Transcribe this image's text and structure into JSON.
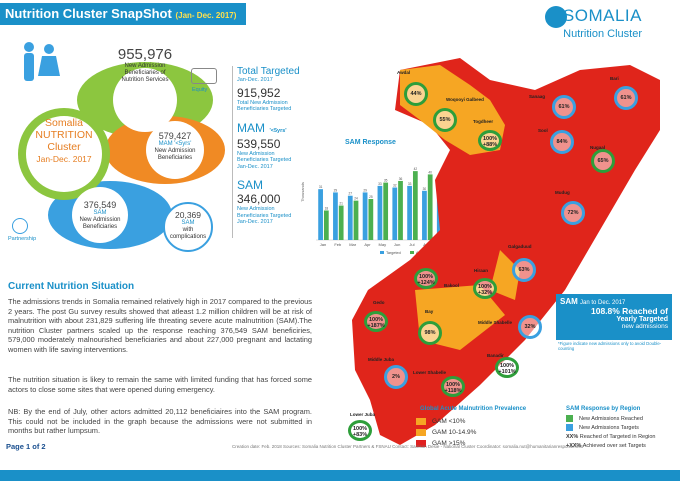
{
  "header": {
    "title": "Nutrition Cluster SnapShot",
    "period": "(Jan- Dec. 2017)",
    "logo_title": "SOMALIA",
    "logo_subtitle": "Nutrition Cluster"
  },
  "diagram": {
    "center": {
      "line1": "Somalia",
      "line2": "NUTRITION",
      "line3": "Cluster",
      "line4": "Jan-Dec. 2017"
    },
    "total": {
      "value": "955,976",
      "label": "New Admission Beneficiaries of Nutrition Services"
    },
    "mam": {
      "value": "579,427",
      "label1": "MAM '<5yrs'",
      "label2": "New Admission Beneficiaries"
    },
    "sam": {
      "value": "376,549",
      "label1": "SAM",
      "label2": "New Admission Beneficiaries"
    },
    "sam_comp": {
      "value": "20,369",
      "label1": "SAM",
      "label2": "with complications"
    },
    "icons": {
      "equity": "Equity",
      "partnership": "Partnership"
    }
  },
  "targets": {
    "total_title": "Total Targeted",
    "total_period": "Jan-Dec. 2017",
    "total_value": "915,952",
    "total_label": "Total New Admission Beneficiaries Targeted",
    "mam_title": "MAM",
    "mam_tag": "'<5yrs'",
    "mam_value": "539,550",
    "mam_label": "New Admission Beneficiaries Targeted Jan-Dec. 2017",
    "sam_title": "SAM",
    "sam_value": "346,000",
    "sam_label": "New Admission Beneficiaries Targeted Jan-Dec. 2017"
  },
  "chart_data": {
    "type": "bar",
    "title": "SAM Response",
    "ylabel": "Thousands",
    "categories": [
      "Jan",
      "Feb",
      "Mar",
      "Apr",
      "May",
      "Jun",
      "Jul",
      "Aug",
      "Sep",
      "Oct",
      "Nov",
      "Dec"
    ],
    "series": [
      {
        "name": "Targeted",
        "values": [
          31,
          29,
          27,
          29,
          33,
          32,
          33,
          30,
          31,
          31,
          31,
          32
        ]
      },
      {
        "name": "Achieved",
        "values": [
          18,
          21,
          24,
          25,
          35,
          36,
          42,
          40,
          38,
          33,
          34,
          37
        ]
      }
    ],
    "legend": [
      "Targeted",
      "Achieved"
    ],
    "colors": {
      "Targeted": "#3aa0e0",
      "Achieved": "#4cb050"
    }
  },
  "situation": {
    "title": "Current Nutrition Situation",
    "p1": "The admissions trends in Somalia remained relatively high in 2017 compared to the previous 2 years. The post Gu survey results showed that atleast 1.2 million children will be at risk of malnutrition with about 231,829 suffering life threating severe acute malnutrition (SAM).The nutrition Cluster partners scaled up the response reaching 376,549 SAM beneficiries, 579,000 moderately malnourished beneficiaries and about 227,000 pregnant and lactating women with life saving interventions.",
    "p2": "The nutrition situation is likey to remain the same with limited funding that has forced some actors to close some sites that were opened during emergency.",
    "p3": "NB: By the end of July, other actors admitted 20,112 beneficiaires into the SAM program. This could not be included in the graph because the admissions were not submitted in months but rather lumpsum."
  },
  "map": {
    "regions": [
      {
        "name": "Awdal",
        "pct": "44%",
        "ring": "green"
      },
      {
        "name": "Woqooyi Galbeed",
        "pct": "55%",
        "ring": "green"
      },
      {
        "name": "Togdheer",
        "pct": "100%\n+88%",
        "ring": "green"
      },
      {
        "name": "Sanaag",
        "pct": "61%",
        "ring": "blue"
      },
      {
        "name": "Bari",
        "pct": "61%",
        "ring": "blue"
      },
      {
        "name": "Sool",
        "pct": "84%",
        "ring": "blue"
      },
      {
        "name": "Nugaal",
        "pct": "65%",
        "ring": "green"
      },
      {
        "name": "Mudug",
        "pct": "72%",
        "ring": "blue"
      },
      {
        "name": "Galgaduud",
        "pct": "63%",
        "ring": "blue"
      },
      {
        "name": "Hiraan",
        "pct": "100%\n+32%",
        "ring": "green"
      },
      {
        "name": "Bakool",
        "pct": "100%\n+124%",
        "ring": "green"
      },
      {
        "name": "Gedo",
        "pct": "100%\n+187%",
        "ring": "green"
      },
      {
        "name": "Bay",
        "pct": "98%",
        "ring": "green"
      },
      {
        "name": "Middle Shabelle",
        "pct": "32%",
        "ring": "blue"
      },
      {
        "name": "Banadir",
        "pct": "100%\n+101%",
        "ring": "green"
      },
      {
        "name": "Lower Shabelle",
        "pct": "100%\n+118%",
        "ring": "green"
      },
      {
        "name": "Middle Juba",
        "pct": "2%",
        "ring": "blue"
      },
      {
        "name": "Lower Juba",
        "pct": "100%\n+83%",
        "ring": "green"
      }
    ],
    "sam_box": {
      "line1": "SAM",
      "period": "Jan to Dec. 2017",
      "pct": "108.8% Reached of",
      "line3": "Yearly Targeted",
      "line4": "new admissions",
      "note": "*Figure indicate new admissions only to avoid Double-counting"
    }
  },
  "gam_legend": {
    "title": "Global Acute Malnutrition Prevalence",
    "items": [
      {
        "label": "GAM",
        "range": "<10%",
        "color": "#f6a623"
      },
      {
        "label": "GAM",
        "range": "10-14.9%",
        "color": "#f6a623"
      },
      {
        "label": "GAM",
        "range": ">15%",
        "color": "#e02020"
      }
    ]
  },
  "sam_legend": {
    "title": "SAM Response by Region",
    "items": [
      {
        "label": "New Admissions Reached",
        "color": "#4cb050"
      },
      {
        "label": "New Admissions Targets",
        "color": "#3aa0e0"
      }
    ],
    "xx_pct": "XX%",
    "xx_label": "Reached of Targeted in Region",
    "plus_xx": "+XX%",
    "plus_label": "Achieved over set Targets"
  },
  "footer": {
    "page": "Page 1 of 2",
    "credits": "Creation date: Feb. 2018  Sources: Somalia Nutrition Cluster Partners & FSNAU   Contact: Samson Desie - National Cluster Coordinator: somalia.nut@humanitarianresponse.info"
  }
}
